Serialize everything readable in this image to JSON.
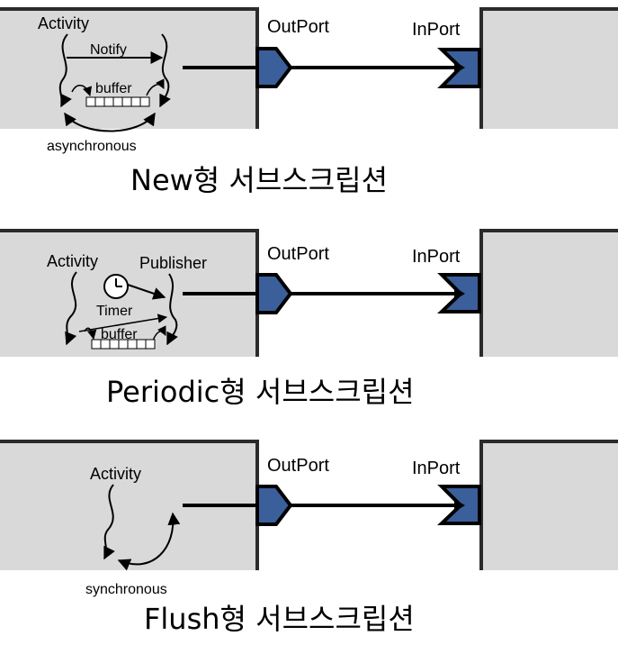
{
  "colors": {
    "box_fill": "#d9d9d9",
    "box_border": "#2b2b2b",
    "port_fill": "#3a5f9a",
    "line": "#000000"
  },
  "panels": [
    {
      "id": "new",
      "outport_label": "OutPort",
      "inport_label": "InPort",
      "activity_label": "Activity",
      "notify_label": "Notify",
      "buffer_label": "buffer",
      "mode_label": "asynchronous",
      "title_prefix": "New",
      "title_suffix": "형 서브스크립션"
    },
    {
      "id": "periodic",
      "outport_label": "OutPort",
      "inport_label": "InPort",
      "activity_label": "Activity",
      "publisher_label": "Publisher",
      "timer_label": "Timer",
      "buffer_label": "buffer",
      "title_prefix": "Periodic",
      "title_suffix": "형 서브스크립션"
    },
    {
      "id": "flush",
      "outport_label": "OutPort",
      "inport_label": "InPort",
      "activity_label": "Activity",
      "mode_label": "synchronous",
      "title_prefix": "Flush",
      "title_suffix": "형 서브스크립션"
    }
  ]
}
